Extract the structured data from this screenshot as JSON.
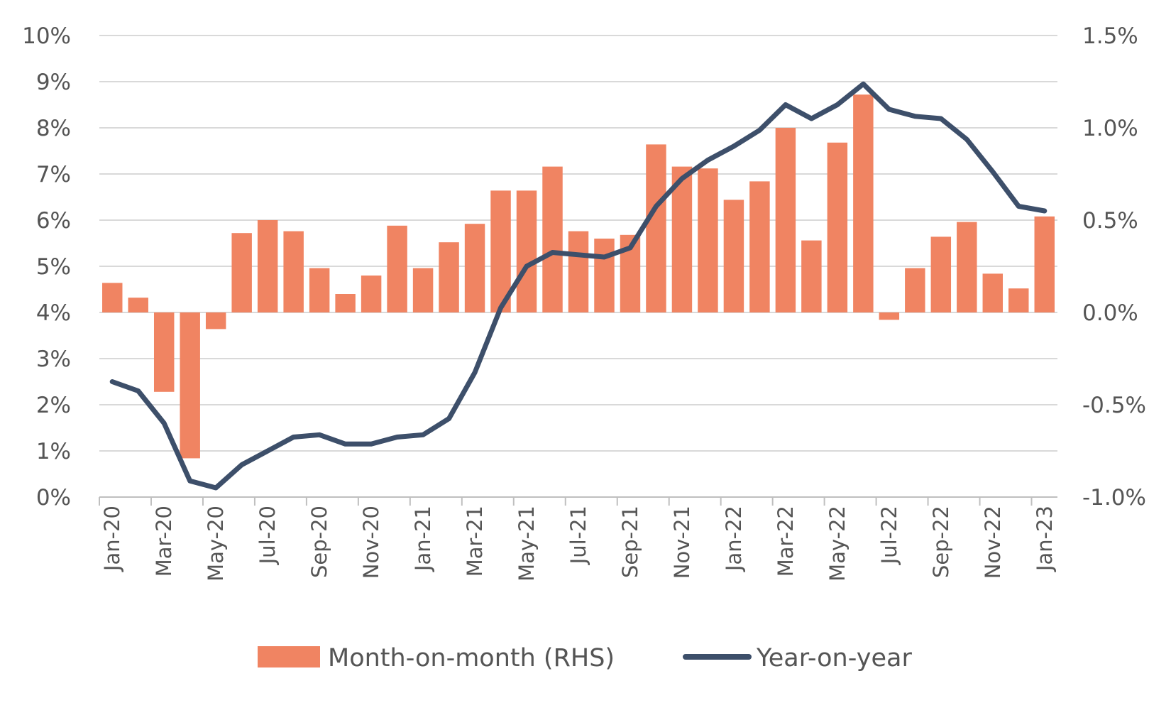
{
  "chart_data": {
    "type": "bar+line",
    "title": "",
    "xlabel": "",
    "ylabel_left": "",
    "ylabel_right": "",
    "grid": true,
    "legend_position": "bottom",
    "categories": [
      "Jan-20",
      "Feb-20",
      "Mar-20",
      "Apr-20",
      "May-20",
      "Jun-20",
      "Jul-20",
      "Aug-20",
      "Sep-20",
      "Oct-20",
      "Nov-20",
      "Dec-20",
      "Jan-21",
      "Feb-21",
      "Mar-21",
      "Apr-21",
      "May-21",
      "Jun-21",
      "Jul-21",
      "Aug-21",
      "Sep-21",
      "Oct-21",
      "Nov-21",
      "Dec-21",
      "Jan-22",
      "Feb-22",
      "Mar-22",
      "Apr-22",
      "May-22",
      "Jun-22",
      "Jul-22",
      "Aug-22",
      "Sep-22",
      "Oct-22",
      "Nov-22",
      "Dec-22",
      "Jan-23"
    ],
    "x_tick_labels": [
      "Jan-20",
      "Mar-20",
      "May-20",
      "Jul-20",
      "Sep-20",
      "Nov-20",
      "Jan-21",
      "Mar-21",
      "May-21",
      "Jul-21",
      "Sep-21",
      "Nov-21",
      "Jan-22",
      "Mar-22",
      "May-22",
      "Jul-22",
      "Sep-22",
      "Nov-22",
      "Jan-23"
    ],
    "y_left": {
      "range": [
        0,
        10
      ],
      "ticks": [
        "0%",
        "1%",
        "2%",
        "3%",
        "4%",
        "5%",
        "6%",
        "7%",
        "8%",
        "9%",
        "10%"
      ]
    },
    "y_right": {
      "range": [
        -1.0,
        1.5
      ],
      "ticks": [
        "-1.0%",
        "-0.5%",
        "0.0%",
        "0.5%",
        "1.0%",
        "1.5%"
      ]
    },
    "series": [
      {
        "name": "Month-on-month (RHS)",
        "type": "bar",
        "axis": "right",
        "color": "#F08462",
        "values": [
          0.16,
          0.08,
          -0.43,
          -0.79,
          -0.09,
          0.43,
          0.5,
          0.44,
          0.24,
          0.1,
          0.2,
          0.47,
          0.24,
          0.38,
          0.48,
          0.66,
          0.66,
          0.79,
          0.44,
          0.4,
          0.42,
          0.91,
          0.79,
          0.78,
          0.61,
          0.71,
          1.0,
          0.39,
          0.92,
          1.18,
          -0.04,
          0.24,
          0.41,
          0.49,
          0.21,
          0.13,
          0.52
        ]
      },
      {
        "name": "Year-on-year",
        "type": "line",
        "axis": "left",
        "color": "#3D4F6A",
        "values": [
          2.5,
          2.3,
          1.6,
          0.35,
          0.2,
          0.7,
          1.0,
          1.3,
          1.35,
          1.15,
          1.15,
          1.3,
          1.35,
          1.7,
          2.7,
          4.1,
          5.0,
          5.3,
          5.25,
          5.2,
          5.4,
          6.3,
          6.9,
          7.3,
          7.6,
          7.95,
          8.5,
          8.2,
          8.5,
          8.95,
          8.4,
          8.25,
          8.2,
          7.75,
          7.05,
          6.3,
          6.2
        ]
      }
    ]
  }
}
